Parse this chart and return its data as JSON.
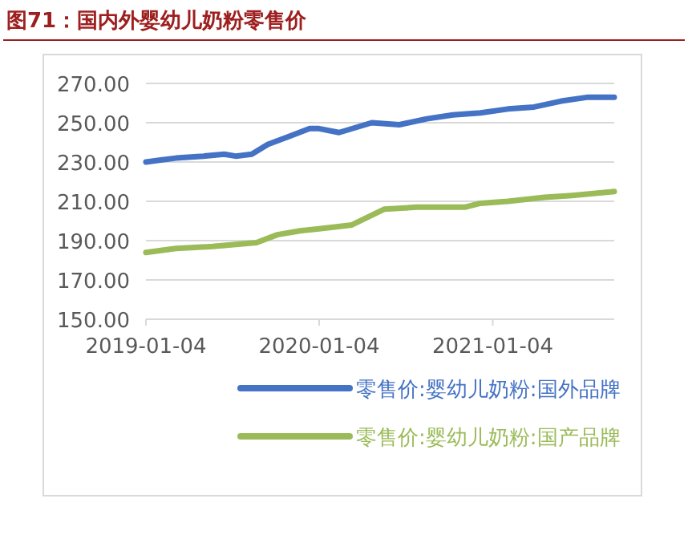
{
  "chart_data": {
    "type": "line",
    "title": "图71：国内外婴幼儿奶粉零售价",
    "x": [
      "2019-01-04",
      "2019-02-04",
      "2019-03-08",
      "2019-05-05",
      "2019-06-18",
      "2019-07-12",
      "2019-08-15",
      "2019-09-18",
      "2019-11-01",
      "2019-12-15",
      "2020-01-04",
      "2020-02-15",
      "2020-04-24",
      "2020-06-21",
      "2020-08-18",
      "2020-10-12",
      "2020-12-09",
      "2021-02-05",
      "2021-04-01",
      "2021-05-28",
      "2021-07-24",
      "2021-09-17"
    ],
    "series": [
      {
        "name": "零售价:婴幼儿奶粉:国外品牌",
        "color": "#4472c4",
        "values": [
          230,
          231,
          232,
          233,
          234,
          233,
          234,
          239,
          243,
          247,
          247,
          245,
          250,
          249,
          252,
          254,
          255,
          257,
          258,
          261,
          263,
          263
        ]
      },
      {
        "name": "零售价:婴幼儿奶粉:国产品牌",
        "color": "#9bbb59",
        "x": [
          "2019-01-04",
          "2019-03-08",
          "2019-05-25",
          "2019-08-25",
          "2019-10-08",
          "2019-11-25",
          "2020-01-04",
          "2020-03-13",
          "2020-05-20",
          "2020-07-27",
          "2020-11-06",
          "2020-12-09",
          "2021-02-05",
          "2021-04-23",
          "2021-06-20",
          "2021-09-17"
        ],
        "values": [
          184,
          186,
          187,
          189,
          193,
          195,
          196,
          198,
          206,
          207,
          207,
          209,
          210,
          212,
          213,
          215
        ]
      }
    ],
    "xlim": [
      "2019-01-04",
      "2021-09-17"
    ],
    "xticks": [
      "2019-01-04",
      "2020-01-04",
      "2021-01-04"
    ],
    "ylim": [
      150,
      270
    ],
    "yticks": [
      {
        "value": 150,
        "label": "150.00"
      },
      {
        "value": 170,
        "label": "170.00"
      },
      {
        "value": 190,
        "label": "190.00"
      },
      {
        "value": 210,
        "label": "210.00"
      },
      {
        "value": 230,
        "label": "230.00"
      },
      {
        "value": 250,
        "label": "250.00"
      },
      {
        "value": 270,
        "label": "270.00"
      }
    ],
    "grid": "y",
    "legend": "bottom",
    "marker": "none",
    "line_style": "solid"
  }
}
